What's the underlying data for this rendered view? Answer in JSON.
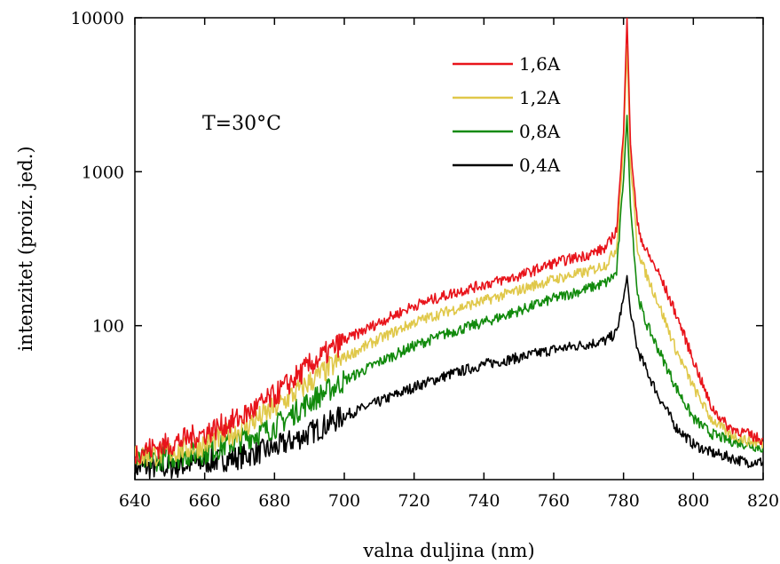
{
  "chart_data": {
    "type": "line",
    "xlabel": "valna duljina (nm)",
    "ylabel": "intenzitet (proiz. jed.)",
    "xlim": [
      640,
      820
    ],
    "ylim": [
      10,
      10000
    ],
    "yscale": "log",
    "xticks": [
      640,
      660,
      680,
      700,
      720,
      740,
      760,
      780,
      800,
      820
    ],
    "yticks": [
      100,
      1000,
      10000
    ],
    "legend_position": "top-center",
    "annotations": [
      {
        "text": "T=30°C",
        "x": 661,
        "y": 4000
      }
    ],
    "series": [
      {
        "name": "1,6A",
        "color": "#e8141b",
        "x": [
          640,
          650,
          660,
          670,
          680,
          690,
          700,
          710,
          720,
          730,
          740,
          750,
          760,
          770,
          775,
          778,
          780,
          781,
          782,
          784,
          786,
          790,
          795,
          800,
          805,
          810,
          815,
          820
        ],
        "y": [
          15,
          17,
          20,
          25,
          35,
          55,
          80,
          105,
          135,
          160,
          185,
          210,
          255,
          290,
          320,
          420,
          1800,
          10000,
          1500,
          450,
          320,
          220,
          120,
          60,
          30,
          22,
          20,
          18
        ]
      },
      {
        "name": "1,2A",
        "color": "#e0c84a",
        "x": [
          640,
          650,
          660,
          670,
          680,
          690,
          700,
          710,
          720,
          730,
          740,
          750,
          760,
          770,
          775,
          778,
          780,
          781,
          782,
          784,
          786,
          790,
          795,
          800,
          805,
          810,
          815,
          820
        ],
        "y": [
          14,
          15,
          17,
          21,
          29,
          43,
          62,
          82,
          105,
          125,
          145,
          170,
          200,
          225,
          250,
          320,
          1500,
          6500,
          1100,
          320,
          230,
          140,
          70,
          40,
          25,
          20,
          18,
          17
        ]
      },
      {
        "name": "0,8A",
        "color": "#118a0c",
        "x": [
          640,
          650,
          660,
          670,
          680,
          690,
          700,
          710,
          720,
          730,
          740,
          750,
          760,
          770,
          775,
          778,
          780,
          781,
          782,
          784,
          786,
          790,
          795,
          800,
          805,
          810,
          815,
          820
        ],
        "y": [
          13,
          14,
          15,
          18,
          22,
          32,
          44,
          58,
          74,
          90,
          105,
          125,
          150,
          175,
          190,
          220,
          900,
          2300,
          600,
          160,
          110,
          70,
          40,
          25,
          20,
          18,
          17,
          16
        ]
      },
      {
        "name": "0,4A",
        "color": "#000000",
        "x": [
          640,
          650,
          660,
          670,
          680,
          690,
          700,
          710,
          720,
          730,
          740,
          750,
          760,
          770,
          775,
          778,
          780,
          781,
          782,
          784,
          786,
          790,
          795,
          800,
          805,
          810,
          815,
          820
        ],
        "y": [
          12,
          12,
          13,
          14,
          16,
          20,
          26,
          32,
          40,
          48,
          56,
          62,
          70,
          76,
          80,
          90,
          150,
          210,
          120,
          70,
          55,
          35,
          22,
          17,
          15,
          14,
          13,
          13
        ]
      }
    ]
  }
}
